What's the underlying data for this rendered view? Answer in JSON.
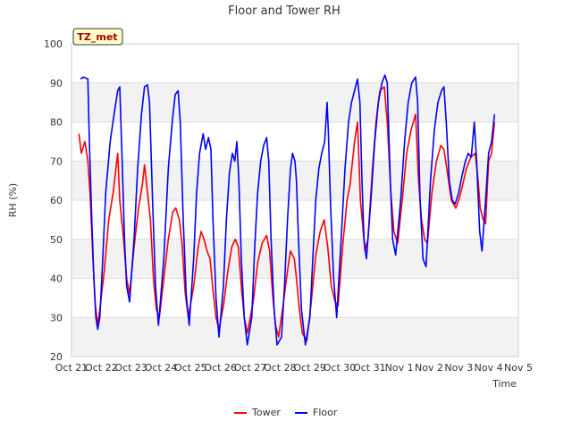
{
  "chart_data": {
    "type": "line",
    "title": "Floor and Tower RH",
    "xlabel": "Time",
    "ylabel": "RH (%)",
    "ylim": [
      20,
      100
    ],
    "yticks": [
      20,
      30,
      40,
      50,
      60,
      70,
      80,
      90,
      100
    ],
    "xlim": [
      0,
      15
    ],
    "xticks": [
      {
        "x": 0,
        "label": "Oct 21"
      },
      {
        "x": 1,
        "label": "Oct 22"
      },
      {
        "x": 2,
        "label": "Oct 23"
      },
      {
        "x": 3,
        "label": "Oct 24"
      },
      {
        "x": 4,
        "label": "Oct 25"
      },
      {
        "x": 5,
        "label": "Oct 26"
      },
      {
        "x": 6,
        "label": "Oct 27"
      },
      {
        "x": 7,
        "label": "Oct 28"
      },
      {
        "x": 8,
        "label": "Oct 29"
      },
      {
        "x": 9,
        "label": "Oct 30"
      },
      {
        "x": 10,
        "label": "Oct 31"
      },
      {
        "x": 11,
        "label": "Nov 1"
      },
      {
        "x": 12,
        "label": "Nov 2"
      },
      {
        "x": 13,
        "label": "Nov 3"
      },
      {
        "x": 14,
        "label": "Nov 4"
      },
      {
        "x": 15,
        "label": "Nov 5"
      }
    ],
    "grid": true,
    "legend_position": "bottom",
    "annotation": "TZ_met",
    "series": [
      {
        "name": "Tower",
        "color": "#ff0000",
        "points": [
          [
            0.25,
            77
          ],
          [
            0.33,
            72
          ],
          [
            0.45,
            75
          ],
          [
            0.55,
            70
          ],
          [
            0.62,
            62
          ],
          [
            0.72,
            45
          ],
          [
            0.8,
            33
          ],
          [
            0.88,
            28
          ],
          [
            0.95,
            32
          ],
          [
            1.1,
            42
          ],
          [
            1.25,
            55
          ],
          [
            1.4,
            62
          ],
          [
            1.55,
            72
          ],
          [
            1.62,
            60
          ],
          [
            1.75,
            50
          ],
          [
            1.85,
            40
          ],
          [
            1.95,
            36
          ],
          [
            2.1,
            48
          ],
          [
            2.25,
            58
          ],
          [
            2.38,
            64
          ],
          [
            2.45,
            69
          ],
          [
            2.55,
            62
          ],
          [
            2.65,
            55
          ],
          [
            2.75,
            40
          ],
          [
            2.85,
            32
          ],
          [
            2.95,
            30
          ],
          [
            3.1,
            40
          ],
          [
            3.25,
            50
          ],
          [
            3.4,
            57
          ],
          [
            3.5,
            58
          ],
          [
            3.62,
            55
          ],
          [
            3.72,
            48
          ],
          [
            3.82,
            36
          ],
          [
            3.92,
            30
          ],
          [
            4.1,
            38
          ],
          [
            4.25,
            48
          ],
          [
            4.35,
            52
          ],
          [
            4.45,
            50
          ],
          [
            4.55,
            47
          ],
          [
            4.65,
            45
          ],
          [
            4.75,
            37
          ],
          [
            4.85,
            30
          ],
          [
            4.95,
            27
          ],
          [
            5.1,
            33
          ],
          [
            5.25,
            42
          ],
          [
            5.38,
            48
          ],
          [
            5.5,
            50
          ],
          [
            5.6,
            48
          ],
          [
            5.7,
            38
          ],
          [
            5.8,
            30
          ],
          [
            5.9,
            26
          ],
          [
            6.1,
            34
          ],
          [
            6.25,
            44
          ],
          [
            6.4,
            49
          ],
          [
            6.55,
            51
          ],
          [
            6.65,
            47
          ],
          [
            6.75,
            36
          ],
          [
            6.85,
            28
          ],
          [
            6.95,
            25
          ],
          [
            7.1,
            33
          ],
          [
            7.25,
            42
          ],
          [
            7.35,
            47
          ],
          [
            7.48,
            45
          ],
          [
            7.55,
            40
          ],
          [
            7.65,
            32
          ],
          [
            7.75,
            26
          ],
          [
            7.9,
            24
          ],
          [
            8.05,
            34
          ],
          [
            8.2,
            46
          ],
          [
            8.35,
            52
          ],
          [
            8.48,
            55
          ],
          [
            8.6,
            48
          ],
          [
            8.72,
            38
          ],
          [
            8.85,
            34
          ],
          [
            8.95,
            33
          ],
          [
            9.1,
            48
          ],
          [
            9.25,
            60
          ],
          [
            9.35,
            64
          ],
          [
            9.5,
            75
          ],
          [
            9.6,
            80
          ],
          [
            9.7,
            60
          ],
          [
            9.85,
            47
          ],
          [
            9.95,
            50
          ],
          [
            10.1,
            68
          ],
          [
            10.22,
            80
          ],
          [
            10.35,
            88
          ],
          [
            10.5,
            89
          ],
          [
            10.6,
            80
          ],
          [
            10.72,
            62
          ],
          [
            10.82,
            52
          ],
          [
            10.95,
            49
          ],
          [
            11.1,
            60
          ],
          [
            11.25,
            72
          ],
          [
            11.4,
            78
          ],
          [
            11.55,
            82
          ],
          [
            11.65,
            65
          ],
          [
            11.75,
            55
          ],
          [
            11.85,
            50
          ],
          [
            11.95,
            49
          ],
          [
            12.1,
            62
          ],
          [
            12.25,
            70
          ],
          [
            12.4,
            74
          ],
          [
            12.5,
            73
          ],
          [
            12.6,
            68
          ],
          [
            12.75,
            60
          ],
          [
            12.9,
            58
          ],
          [
            13.0,
            60
          ],
          [
            13.1,
            63
          ],
          [
            13.25,
            68
          ],
          [
            13.4,
            71
          ],
          [
            13.55,
            72
          ],
          [
            13.65,
            65
          ],
          [
            13.72,
            58
          ],
          [
            13.82,
            55
          ],
          [
            13.9,
            54
          ],
          [
            14.0,
            70
          ],
          [
            14.1,
            72
          ],
          [
            14.2,
            80
          ]
        ]
      },
      {
        "name": "Floor",
        "color": "#0000ff",
        "points": [
          [
            0.3,
            91
          ],
          [
            0.4,
            91.5
          ],
          [
            0.55,
            91
          ],
          [
            0.6,
            75
          ],
          [
            0.68,
            55
          ],
          [
            0.75,
            40
          ],
          [
            0.82,
            30
          ],
          [
            0.88,
            27
          ],
          [
            0.95,
            30
          ],
          [
            1.05,
            45
          ],
          [
            1.15,
            62
          ],
          [
            1.3,
            75
          ],
          [
            1.45,
            83
          ],
          [
            1.55,
            88
          ],
          [
            1.62,
            89
          ],
          [
            1.7,
            70
          ],
          [
            1.78,
            50
          ],
          [
            1.85,
            38
          ],
          [
            1.95,
            34
          ],
          [
            2.1,
            50
          ],
          [
            2.22,
            68
          ],
          [
            2.35,
            82
          ],
          [
            2.45,
            89
          ],
          [
            2.55,
            89.5
          ],
          [
            2.62,
            85
          ],
          [
            2.72,
            60
          ],
          [
            2.82,
            38
          ],
          [
            2.92,
            28
          ],
          [
            3.1,
            45
          ],
          [
            3.25,
            68
          ],
          [
            3.38,
            80
          ],
          [
            3.48,
            87
          ],
          [
            3.58,
            88
          ],
          [
            3.65,
            80
          ],
          [
            3.75,
            55
          ],
          [
            3.85,
            36
          ],
          [
            3.95,
            28
          ],
          [
            4.1,
            45
          ],
          [
            4.2,
            62
          ],
          [
            4.3,
            72
          ],
          [
            4.42,
            77
          ],
          [
            4.5,
            73
          ],
          [
            4.6,
            76
          ],
          [
            4.68,
            73
          ],
          [
            4.75,
            55
          ],
          [
            4.85,
            35
          ],
          [
            4.95,
            25
          ],
          [
            5.1,
            38
          ],
          [
            5.2,
            55
          ],
          [
            5.3,
            67
          ],
          [
            5.4,
            72
          ],
          [
            5.48,
            70
          ],
          [
            5.55,
            75
          ],
          [
            5.62,
            65
          ],
          [
            5.7,
            45
          ],
          [
            5.8,
            30
          ],
          [
            5.9,
            23
          ],
          [
            6.05,
            30
          ],
          [
            6.15,
            48
          ],
          [
            6.25,
            62
          ],
          [
            6.35,
            70
          ],
          [
            6.45,
            74
          ],
          [
            6.55,
            76
          ],
          [
            6.62,
            70
          ],
          [
            6.7,
            50
          ],
          [
            6.8,
            32
          ],
          [
            6.9,
            23
          ],
          [
            7.05,
            25
          ],
          [
            7.15,
            38
          ],
          [
            7.25,
            55
          ],
          [
            7.35,
            68
          ],
          [
            7.42,
            72
          ],
          [
            7.5,
            70
          ],
          [
            7.55,
            65
          ],
          [
            7.62,
            50
          ],
          [
            7.72,
            32
          ],
          [
            7.85,
            23
          ],
          [
            8.0,
            30
          ],
          [
            8.1,
            45
          ],
          [
            8.2,
            60
          ],
          [
            8.3,
            68
          ],
          [
            8.4,
            72
          ],
          [
            8.5,
            75
          ],
          [
            8.58,
            85
          ],
          [
            8.62,
            78
          ],
          [
            8.7,
            58
          ],
          [
            8.8,
            40
          ],
          [
            8.9,
            30
          ],
          [
            9.05,
            50
          ],
          [
            9.18,
            68
          ],
          [
            9.3,
            80
          ],
          [
            9.4,
            85
          ],
          [
            9.5,
            88
          ],
          [
            9.6,
            91
          ],
          [
            9.68,
            85
          ],
          [
            9.75,
            65
          ],
          [
            9.82,
            50
          ],
          [
            9.9,
            45
          ],
          [
            10.05,
            60
          ],
          [
            10.18,
            75
          ],
          [
            10.3,
            85
          ],
          [
            10.42,
            90
          ],
          [
            10.52,
            92
          ],
          [
            10.6,
            90
          ],
          [
            10.7,
            65
          ],
          [
            10.78,
            50
          ],
          [
            10.88,
            46
          ],
          [
            11.05,
            60
          ],
          [
            11.18,
            75
          ],
          [
            11.3,
            85
          ],
          [
            11.42,
            90
          ],
          [
            11.55,
            91.5
          ],
          [
            11.62,
            85
          ],
          [
            11.7,
            60
          ],
          [
            11.8,
            45
          ],
          [
            11.9,
            43
          ],
          [
            12.05,
            65
          ],
          [
            12.18,
            78
          ],
          [
            12.3,
            85
          ],
          [
            12.42,
            88
          ],
          [
            12.5,
            89
          ],
          [
            12.58,
            80
          ],
          [
            12.68,
            65
          ],
          [
            12.78,
            60
          ],
          [
            12.88,
            59
          ],
          [
            13.0,
            62
          ],
          [
            13.1,
            66
          ],
          [
            13.22,
            70
          ],
          [
            13.32,
            72
          ],
          [
            13.42,
            71
          ],
          [
            13.52,
            80
          ],
          [
            13.6,
            70
          ],
          [
            13.7,
            52
          ],
          [
            13.78,
            47
          ],
          [
            13.9,
            60
          ],
          [
            14.0,
            72
          ],
          [
            14.1,
            75
          ],
          [
            14.2,
            82
          ]
        ]
      }
    ]
  }
}
